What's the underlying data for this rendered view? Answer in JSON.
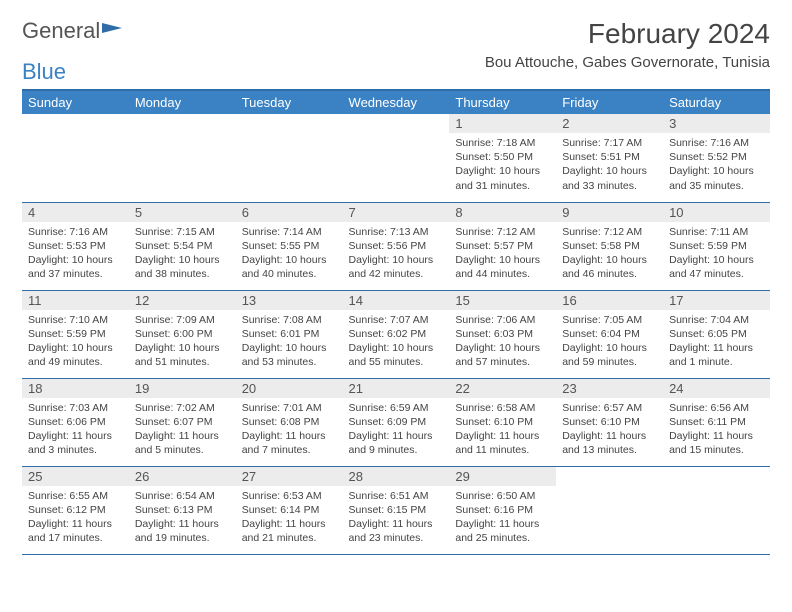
{
  "brand": {
    "word1": "General",
    "word2": "Blue"
  },
  "title": "February 2024",
  "location": "Bou Attouche, Gabes Governorate, Tunisia",
  "colors": {
    "header_bar": "#3b82c4",
    "divider": "#2f6da8",
    "day_bg": "#ececec",
    "text": "#444444",
    "background": "#ffffff"
  },
  "weekdays": [
    "Sunday",
    "Monday",
    "Tuesday",
    "Wednesday",
    "Thursday",
    "Friday",
    "Saturday"
  ],
  "layout": {
    "rows": 5,
    "cols": 7,
    "first_weekday_index": 4,
    "days_in_month": 29
  },
  "days": [
    {
      "n": 1,
      "sunrise": "7:18 AM",
      "sunset": "5:50 PM",
      "daylight": "10 hours and 31 minutes."
    },
    {
      "n": 2,
      "sunrise": "7:17 AM",
      "sunset": "5:51 PM",
      "daylight": "10 hours and 33 minutes."
    },
    {
      "n": 3,
      "sunrise": "7:16 AM",
      "sunset": "5:52 PM",
      "daylight": "10 hours and 35 minutes."
    },
    {
      "n": 4,
      "sunrise": "7:16 AM",
      "sunset": "5:53 PM",
      "daylight": "10 hours and 37 minutes."
    },
    {
      "n": 5,
      "sunrise": "7:15 AM",
      "sunset": "5:54 PM",
      "daylight": "10 hours and 38 minutes."
    },
    {
      "n": 6,
      "sunrise": "7:14 AM",
      "sunset": "5:55 PM",
      "daylight": "10 hours and 40 minutes."
    },
    {
      "n": 7,
      "sunrise": "7:13 AM",
      "sunset": "5:56 PM",
      "daylight": "10 hours and 42 minutes."
    },
    {
      "n": 8,
      "sunrise": "7:12 AM",
      "sunset": "5:57 PM",
      "daylight": "10 hours and 44 minutes."
    },
    {
      "n": 9,
      "sunrise": "7:12 AM",
      "sunset": "5:58 PM",
      "daylight": "10 hours and 46 minutes."
    },
    {
      "n": 10,
      "sunrise": "7:11 AM",
      "sunset": "5:59 PM",
      "daylight": "10 hours and 47 minutes."
    },
    {
      "n": 11,
      "sunrise": "7:10 AM",
      "sunset": "5:59 PM",
      "daylight": "10 hours and 49 minutes."
    },
    {
      "n": 12,
      "sunrise": "7:09 AM",
      "sunset": "6:00 PM",
      "daylight": "10 hours and 51 minutes."
    },
    {
      "n": 13,
      "sunrise": "7:08 AM",
      "sunset": "6:01 PM",
      "daylight": "10 hours and 53 minutes."
    },
    {
      "n": 14,
      "sunrise": "7:07 AM",
      "sunset": "6:02 PM",
      "daylight": "10 hours and 55 minutes."
    },
    {
      "n": 15,
      "sunrise": "7:06 AM",
      "sunset": "6:03 PM",
      "daylight": "10 hours and 57 minutes."
    },
    {
      "n": 16,
      "sunrise": "7:05 AM",
      "sunset": "6:04 PM",
      "daylight": "10 hours and 59 minutes."
    },
    {
      "n": 17,
      "sunrise": "7:04 AM",
      "sunset": "6:05 PM",
      "daylight": "11 hours and 1 minute."
    },
    {
      "n": 18,
      "sunrise": "7:03 AM",
      "sunset": "6:06 PM",
      "daylight": "11 hours and 3 minutes."
    },
    {
      "n": 19,
      "sunrise": "7:02 AM",
      "sunset": "6:07 PM",
      "daylight": "11 hours and 5 minutes."
    },
    {
      "n": 20,
      "sunrise": "7:01 AM",
      "sunset": "6:08 PM",
      "daylight": "11 hours and 7 minutes."
    },
    {
      "n": 21,
      "sunrise": "6:59 AM",
      "sunset": "6:09 PM",
      "daylight": "11 hours and 9 minutes."
    },
    {
      "n": 22,
      "sunrise": "6:58 AM",
      "sunset": "6:10 PM",
      "daylight": "11 hours and 11 minutes."
    },
    {
      "n": 23,
      "sunrise": "6:57 AM",
      "sunset": "6:10 PM",
      "daylight": "11 hours and 13 minutes."
    },
    {
      "n": 24,
      "sunrise": "6:56 AM",
      "sunset": "6:11 PM",
      "daylight": "11 hours and 15 minutes."
    },
    {
      "n": 25,
      "sunrise": "6:55 AM",
      "sunset": "6:12 PM",
      "daylight": "11 hours and 17 minutes."
    },
    {
      "n": 26,
      "sunrise": "6:54 AM",
      "sunset": "6:13 PM",
      "daylight": "11 hours and 19 minutes."
    },
    {
      "n": 27,
      "sunrise": "6:53 AM",
      "sunset": "6:14 PM",
      "daylight": "11 hours and 21 minutes."
    },
    {
      "n": 28,
      "sunrise": "6:51 AM",
      "sunset": "6:15 PM",
      "daylight": "11 hours and 23 minutes."
    },
    {
      "n": 29,
      "sunrise": "6:50 AM",
      "sunset": "6:16 PM",
      "daylight": "11 hours and 25 minutes."
    }
  ],
  "labels": {
    "sunrise": "Sunrise:",
    "sunset": "Sunset:",
    "daylight": "Daylight:"
  }
}
